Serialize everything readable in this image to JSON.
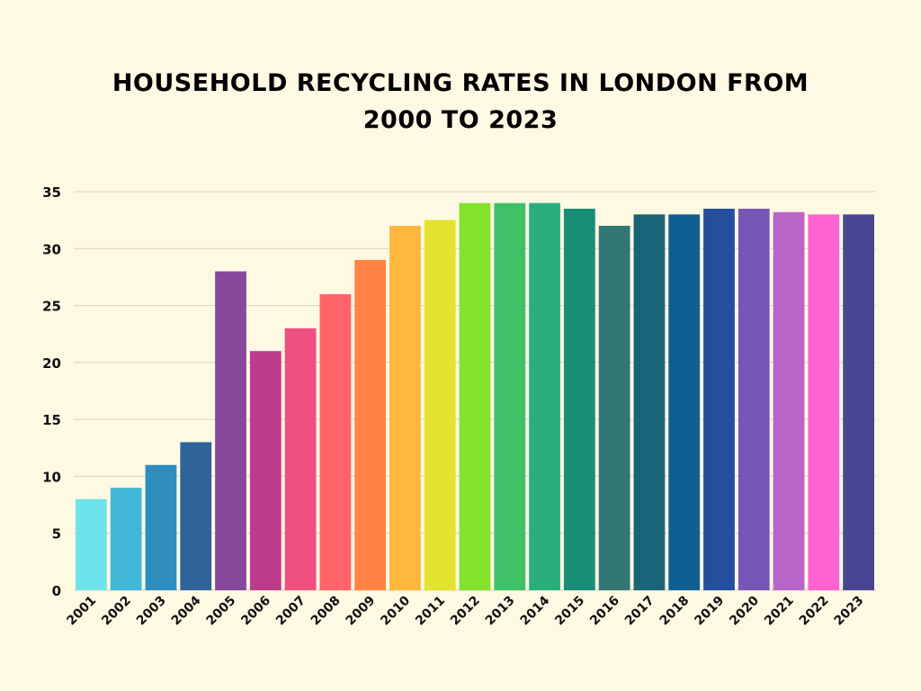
{
  "chart_data": {
    "type": "bar",
    "title_line1": "HOUSEHOLD RECYCLING RATES IN LONDON FROM",
    "title_line2": "2000 TO 2023",
    "xlabel": "",
    "ylabel": "",
    "ylim": [
      0,
      35
    ],
    "yticks": [
      0,
      5,
      10,
      15,
      20,
      25,
      30,
      35
    ],
    "grid": true,
    "categories": [
      "2001",
      "2002",
      "2003",
      "2004",
      "2005",
      "2006",
      "2007",
      "2008",
      "2009",
      "2010",
      "2011",
      "2012",
      "2013",
      "2014",
      "2015",
      "2016",
      "2017",
      "2018",
      "2019",
      "2020",
      "2021",
      "2022",
      "2023"
    ],
    "values": [
      8,
      9,
      11,
      13,
      28,
      21,
      23,
      26,
      29,
      32,
      32.5,
      34,
      34,
      34,
      33.5,
      32,
      33,
      33,
      33.5,
      33.5,
      33.2,
      33,
      33
    ],
    "colors": [
      "#6ee3eb",
      "#42b7d8",
      "#2f8dbd",
      "#2e6499",
      "#87489c",
      "#bc3c8c",
      "#ef5080",
      "#ff6568",
      "#ff8446",
      "#ffb83d",
      "#e4e22c",
      "#82e22c",
      "#3fc167",
      "#2bae7d",
      "#178e75",
      "#337676",
      "#1a6478",
      "#0f5f93",
      "#244f9c",
      "#7657b8",
      "#b865c9",
      "#ff63cf",
      "#484691"
    ]
  }
}
